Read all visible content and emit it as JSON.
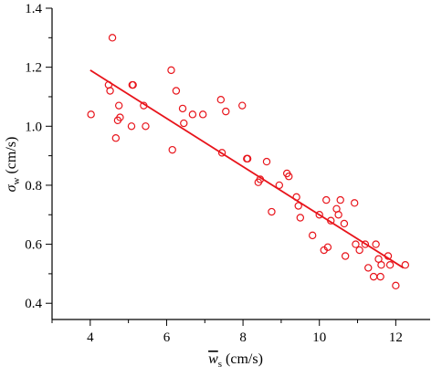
{
  "chart_data": {
    "type": "scatter",
    "title": "",
    "xlabel": "(cm/s)",
    "xlabel_symbol": "w",
    "xlabel_subscript": "s",
    "ylabel": "(cm/s)",
    "ylabel_symbol": "σ",
    "ylabel_subscript": "w",
    "xlim": [
      3.0,
      12.9
    ],
    "ylim": [
      0.345,
      1.4
    ],
    "xticks": [
      4,
      6,
      8,
      10,
      12
    ],
    "yticks": [
      0.4,
      0.6,
      0.8,
      1.0,
      1.2,
      1.4
    ],
    "ytick_labels": [
      "0.4",
      "0.6",
      "0.8",
      "1.0",
      "1.2",
      "1.4"
    ],
    "grid": false,
    "colors": {
      "points": "#e8141b",
      "fit_line": "#e8141b",
      "axes": "#000000"
    },
    "series": [
      {
        "type": "scatter",
        "marker": "open-circle",
        "points": [
          [
            4.02,
            1.04
          ],
          [
            4.48,
            1.14
          ],
          [
            4.52,
            1.12
          ],
          [
            4.58,
            1.3
          ],
          [
            4.67,
            0.96
          ],
          [
            4.72,
            1.02
          ],
          [
            4.75,
            1.07
          ],
          [
            4.78,
            1.03
          ],
          [
            5.08,
            1.0
          ],
          [
            5.1,
            1.14
          ],
          [
            5.12,
            1.14
          ],
          [
            5.4,
            1.07
          ],
          [
            5.45,
            1.0
          ],
          [
            6.12,
            1.19
          ],
          [
            6.15,
            0.92
          ],
          [
            6.25,
            1.12
          ],
          [
            6.42,
            1.06
          ],
          [
            6.45,
            1.01
          ],
          [
            6.68,
            1.04
          ],
          [
            6.95,
            1.04
          ],
          [
            7.42,
            1.09
          ],
          [
            7.45,
            0.91
          ],
          [
            7.55,
            1.05
          ],
          [
            7.98,
            1.07
          ],
          [
            8.1,
            0.89
          ],
          [
            8.12,
            0.89
          ],
          [
            8.4,
            0.81
          ],
          [
            8.45,
            0.82
          ],
          [
            8.62,
            0.88
          ],
          [
            8.75,
            0.71
          ],
          [
            8.95,
            0.8
          ],
          [
            9.15,
            0.84
          ],
          [
            9.2,
            0.83
          ],
          [
            9.4,
            0.76
          ],
          [
            9.45,
            0.73
          ],
          [
            9.5,
            0.69
          ],
          [
            9.82,
            0.63
          ],
          [
            10.0,
            0.7
          ],
          [
            10.12,
            0.58
          ],
          [
            10.18,
            0.75
          ],
          [
            10.22,
            0.59
          ],
          [
            10.3,
            0.68
          ],
          [
            10.45,
            0.72
          ],
          [
            10.5,
            0.7
          ],
          [
            10.55,
            0.75
          ],
          [
            10.65,
            0.67
          ],
          [
            10.68,
            0.56
          ],
          [
            10.92,
            0.74
          ],
          [
            10.95,
            0.6
          ],
          [
            11.05,
            0.58
          ],
          [
            11.2,
            0.6
          ],
          [
            11.28,
            0.52
          ],
          [
            11.42,
            0.49
          ],
          [
            11.48,
            0.6
          ],
          [
            11.55,
            0.55
          ],
          [
            11.6,
            0.49
          ],
          [
            11.62,
            0.53
          ],
          [
            11.8,
            0.56
          ],
          [
            11.85,
            0.53
          ],
          [
            12.0,
            0.46
          ],
          [
            12.25,
            0.53
          ]
        ]
      }
    ],
    "fit_line": {
      "x": [
        4.0,
        12.2
      ],
      "y": [
        1.19,
        0.52
      ]
    }
  }
}
